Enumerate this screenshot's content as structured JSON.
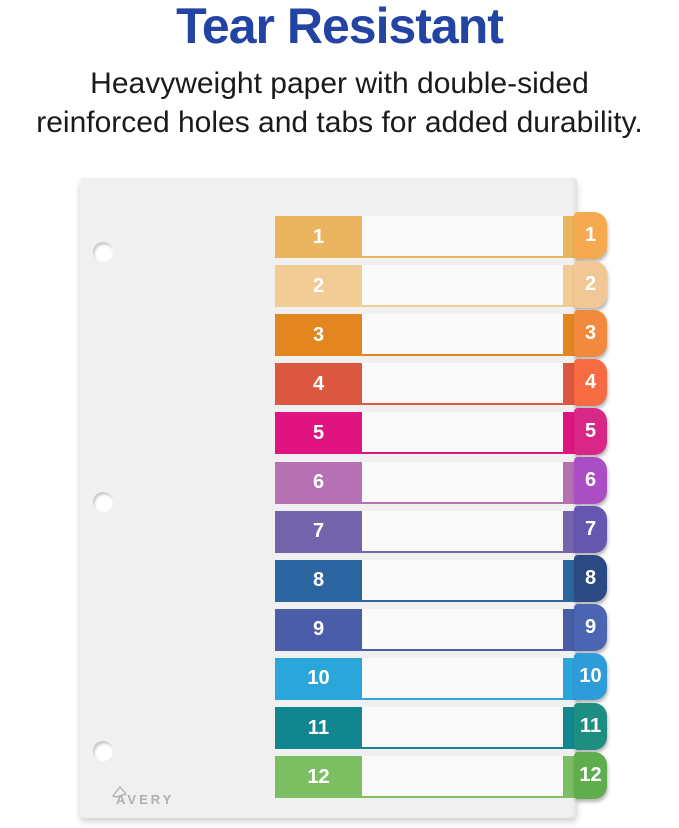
{
  "header": {
    "title": "Tear Resistant",
    "title_color": "#2444A4",
    "subtitle_line1": "Heavyweight paper with double-sided",
    "subtitle_line2": "reinforced holes and tabs for added durability."
  },
  "sheet": {
    "background": "#F0F0F1",
    "writing_area_color": "#FAFAFA",
    "number_text_color": "#FFFFFF",
    "brand": "AVERY",
    "hole_count": 3,
    "rows": [
      {
        "label": "1",
        "block_color": "#EBB45F",
        "tab_color": "#F6AA4F"
      },
      {
        "label": "2",
        "block_color": "#F2CC95",
        "tab_color": "#F0C795"
      },
      {
        "label": "3",
        "block_color": "#E3861F",
        "tab_color": "#F18A3D"
      },
      {
        "label": "4",
        "block_color": "#DC5740",
        "tab_color": "#F66B42"
      },
      {
        "label": "5",
        "block_color": "#E01480",
        "tab_color": "#D92787"
      },
      {
        "label": "6",
        "block_color": "#B571B1",
        "tab_color": "#AA4EC3"
      },
      {
        "label": "7",
        "block_color": "#7464AC",
        "tab_color": "#6556AF"
      },
      {
        "label": "8",
        "block_color": "#2C66A0",
        "tab_color": "#2B4A83"
      },
      {
        "label": "9",
        "block_color": "#4A5DA8",
        "tab_color": "#4B65B3"
      },
      {
        "label": "10",
        "block_color": "#2AA6DB",
        "tab_color": "#2E9CD8"
      },
      {
        "label": "11",
        "block_color": "#11868F",
        "tab_color": "#1D8E80"
      },
      {
        "label": "12",
        "block_color": "#7CBE62",
        "tab_color": "#5FAD4C"
      }
    ]
  }
}
